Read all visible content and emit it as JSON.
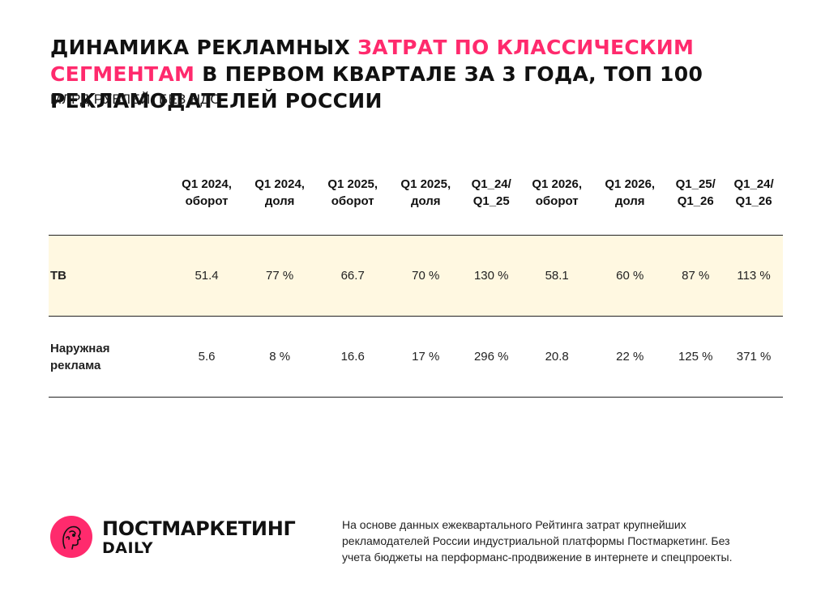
{
  "title": {
    "part1": "ДИНАМИКА РЕКЛАМНЫХ",
    "accent": "ЗАТРАТ ПО КЛАССИЧЕСКИМ СЕГМЕНТАМ",
    "part2": "В ПЕРВОМ КВАРТАЛЕ ЗА 3 ГОДА, ТОП 100 РЕКЛАМОДАТЕЛЕЙ РОССИИ"
  },
  "subtitle": "МЛРД РУБЛЕЙ, БЕЗ НДС",
  "colors": {
    "accent": "#ff2a6d",
    "highlight_row": "#fff8e1",
    "rule": "#222222"
  },
  "table": {
    "columns": [
      {
        "l1": "Q1 2024,",
        "l2": "оборот"
      },
      {
        "l1": "Q1 2024,",
        "l2": "доля"
      },
      {
        "l1": "Q1 2025,",
        "l2": "оборот"
      },
      {
        "l1": "Q1 2025,",
        "l2": "доля"
      },
      {
        "l1": "Q1_24/",
        "l2": "Q1_25"
      },
      {
        "l1": "Q1 2026,",
        "l2": "оборот"
      },
      {
        "l1": "Q1 2026,",
        "l2": "доля"
      },
      {
        "l1": "Q1_25/",
        "l2": "Q1_26"
      },
      {
        "l1": "Q1_24/",
        "l2": "Q1_26"
      }
    ],
    "rows": [
      {
        "label_l1": "ТВ",
        "label_l2": "",
        "values": [
          "51.4",
          "77 %",
          "66.7",
          "70 %",
          "130 %",
          "58.1",
          "60 %",
          "87 %",
          "113 %"
        ]
      },
      {
        "label_l1": "Наружная",
        "label_l2": "реклама",
        "values": [
          "5.6",
          "8 %",
          "16.6",
          "17 %",
          "296 %",
          "20.8",
          "22 %",
          "125 %",
          "371 %"
        ]
      }
    ]
  },
  "logo": {
    "name": "ПОСТМАРКЕТИНГ",
    "sub": "DAILY",
    "icon": "face-profile-icon"
  },
  "note": "На основе данных ежеквартального Рейтинга затрат крупнейших рекламодателей России индустриальной платформы Постмаркетинг. Без учета бюджеты на перформанс-продвижение в интернете и спецпроекты."
}
